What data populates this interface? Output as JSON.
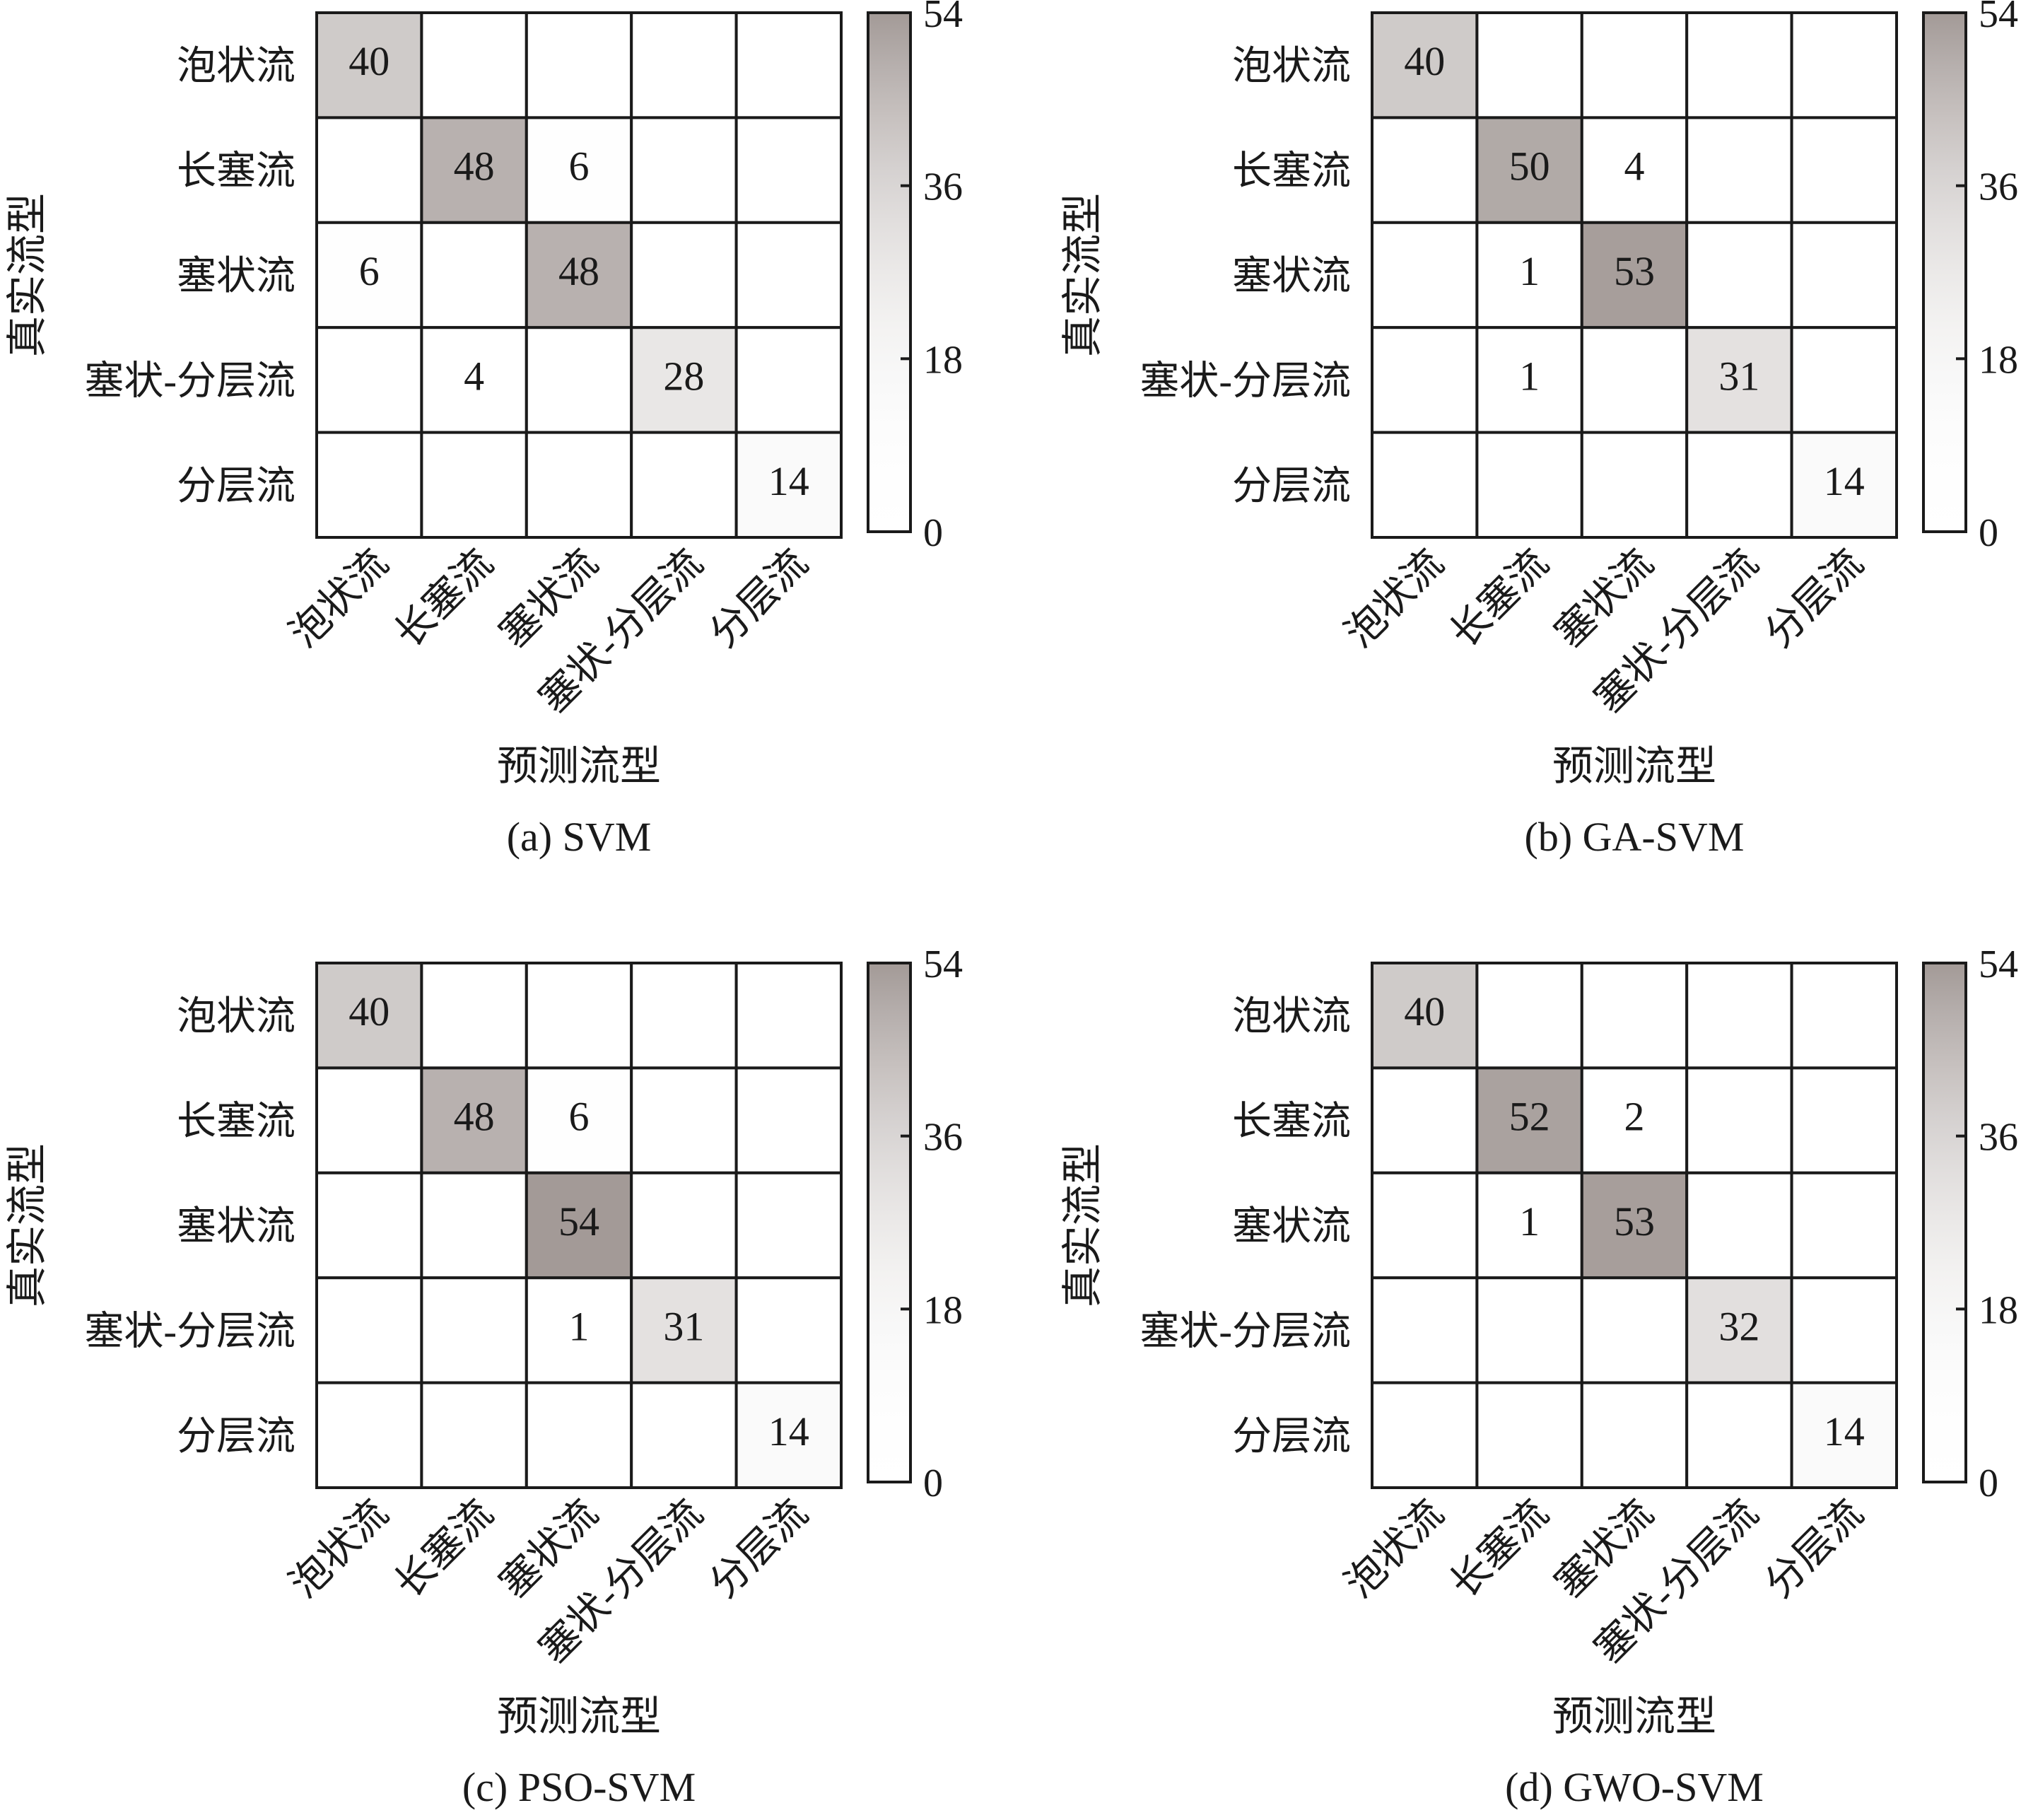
{
  "chart_data": [
    {
      "type": "heatmap",
      "caption": "(a) SVM",
      "xlabel": "预测流型",
      "ylabel": "真实流型",
      "categories": [
        "泡状流",
        "长塞流",
        "塞状流",
        "塞状-分层流",
        "分层流"
      ],
      "values": [
        [
          40,
          null,
          null,
          null,
          null
        ],
        [
          null,
          48,
          6,
          null,
          null
        ],
        [
          6,
          null,
          48,
          null,
          null
        ],
        [
          null,
          4,
          null,
          28,
          null
        ],
        [
          null,
          null,
          null,
          null,
          14
        ]
      ],
      "colorbar": {
        "range": [
          0,
          54
        ],
        "ticks": [
          0,
          18,
          36,
          54
        ]
      }
    },
    {
      "type": "heatmap",
      "caption": "(b) GA-SVM",
      "xlabel": "预测流型",
      "ylabel": "真实流型",
      "categories": [
        "泡状流",
        "长塞流",
        "塞状流",
        "塞状-分层流",
        "分层流"
      ],
      "values": [
        [
          40,
          null,
          null,
          null,
          null
        ],
        [
          null,
          50,
          4,
          null,
          null
        ],
        [
          null,
          1,
          53,
          null,
          null
        ],
        [
          null,
          1,
          null,
          31,
          null
        ],
        [
          null,
          null,
          null,
          null,
          14
        ]
      ],
      "colorbar": {
        "range": [
          0,
          54
        ],
        "ticks": [
          0,
          18,
          36,
          54
        ]
      }
    },
    {
      "type": "heatmap",
      "caption": "(c) PSO-SVM",
      "xlabel": "预测流型",
      "ylabel": "真实流型",
      "categories": [
        "泡状流",
        "长塞流",
        "塞状流",
        "塞状-分层流",
        "分层流"
      ],
      "values": [
        [
          40,
          null,
          null,
          null,
          null
        ],
        [
          null,
          48,
          6,
          null,
          null
        ],
        [
          null,
          null,
          54,
          null,
          null
        ],
        [
          null,
          null,
          1,
          31,
          null
        ],
        [
          null,
          null,
          null,
          null,
          14
        ]
      ],
      "colorbar": {
        "range": [
          0,
          54
        ],
        "ticks": [
          0,
          18,
          36,
          54
        ]
      }
    },
    {
      "type": "heatmap",
      "caption": "(d) GWO-SVM",
      "xlabel": "预测流型",
      "ylabel": "真实流型",
      "categories": [
        "泡状流",
        "长塞流",
        "塞状流",
        "塞状-分层流",
        "分层流"
      ],
      "values": [
        [
          40,
          null,
          null,
          null,
          null
        ],
        [
          null,
          52,
          2,
          null,
          null
        ],
        [
          null,
          1,
          53,
          null,
          null
        ],
        [
          null,
          null,
          null,
          32,
          null
        ],
        [
          null,
          null,
          null,
          null,
          14
        ]
      ],
      "colorbar": {
        "range": [
          0,
          54
        ],
        "ticks": [
          0,
          18,
          36,
          54
        ]
      }
    }
  ],
  "colors": {
    "low": "#ffffff",
    "high": "#a39a97",
    "grid": "#1a1a1a"
  }
}
